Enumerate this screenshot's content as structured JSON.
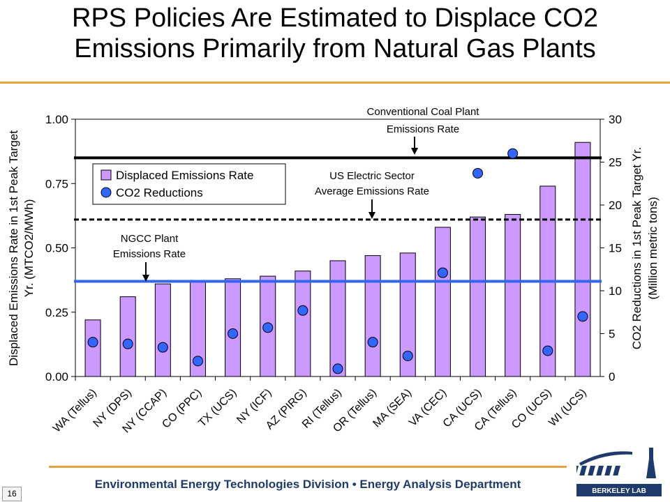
{
  "slide": {
    "title_line1": "RPS Policies Are Estimated to Displace CO2",
    "title_line2": "Emissions Primarily from Natural Gas Plants",
    "footer": "Environmental Energy Technologies Division • Energy Analysis Department",
    "page_number": "16",
    "logo_text": "BERKELEY LAB"
  },
  "colors": {
    "bar_fill": "#cc99ff",
    "marker_fill": "#3366ff",
    "ngcc_line": "#3366ee",
    "accent_rule": "#e8a040",
    "footer_text": "#1f3b6b"
  },
  "chart_data": {
    "type": "bar",
    "categories": [
      "WA (Tellus)",
      "NY (DPS)",
      "NY (CCAP)",
      "CO (PPC)",
      "TX (UCS)",
      "NY (ICF)",
      "AZ (PIRG)",
      "RI (Tellus)",
      "OR (Tellus)",
      "MA (SEA)",
      "VA (CEC)",
      "CA (UCS)",
      "CA (Tellus)",
      "CO (UCS)",
      "WI (UCS)"
    ],
    "series": [
      {
        "name": "Displaced Emissions Rate",
        "axis": "left",
        "values": [
          0.22,
          0.31,
          0.36,
          0.37,
          0.38,
          0.39,
          0.41,
          0.45,
          0.47,
          0.48,
          0.58,
          0.62,
          0.63,
          0.74,
          0.91
        ]
      },
      {
        "name": "CO2 Reductions",
        "axis": "right",
        "values": [
          4.0,
          3.8,
          3.4,
          1.8,
          5.0,
          5.7,
          7.7,
          0.9,
          4.0,
          2.4,
          12.1,
          23.7,
          26.0,
          3.0,
          7.0
        ]
      }
    ],
    "y_left": {
      "label": "Displaced Emissions Rate in 1st Peak Target Yr. (MTCO2/MWh)",
      "label_line1": "Displaced Emissions Rate in 1st Peak Target",
      "label_line2": "Yr. (MTCO2/MWh)",
      "min": 0,
      "max": 1,
      "ticks": [
        0,
        0.25,
        0.5,
        0.75,
        1
      ],
      "tick_labels": [
        "0.00",
        "0.25",
        "0.50",
        "0.75",
        "1.00"
      ]
    },
    "y_right": {
      "label": "CO2 Reductions in 1st Peak Target Yr. (Million metric tons)",
      "label_line1": "CO2 Reductions in 1st Peak Target Yr.",
      "label_line2": "(Million metric tons)",
      "min": 0,
      "max": 30,
      "ticks": [
        0,
        5,
        10,
        15,
        20,
        25,
        30
      ],
      "tick_labels": [
        "0",
        "5",
        "10",
        "15",
        "20",
        "25",
        "30"
      ]
    },
    "reference_lines": [
      {
        "name": "Conventional Coal Plant Emissions Rate",
        "label_line1": "Conventional Coal Plant",
        "label_line2": "Emissions Rate",
        "value": 0.85,
        "style": "solid",
        "color": "#000000"
      },
      {
        "name": "US Electric Sector Average Emissions Rate",
        "label_line1": "US Electric Sector",
        "label_line2": "Average Emissions Rate",
        "value": 0.61,
        "style": "dashed",
        "color": "#000000"
      },
      {
        "name": "NGCC Plant Emissions Rate",
        "label_line1": "NGCC Plant",
        "label_line2": "Emissions Rate",
        "value": 0.37,
        "style": "solid",
        "color": "#3366ee"
      }
    ],
    "legend": {
      "placement": "top-left",
      "entries": [
        "Displaced Emissions Rate",
        "CO2 Reductions"
      ]
    }
  }
}
